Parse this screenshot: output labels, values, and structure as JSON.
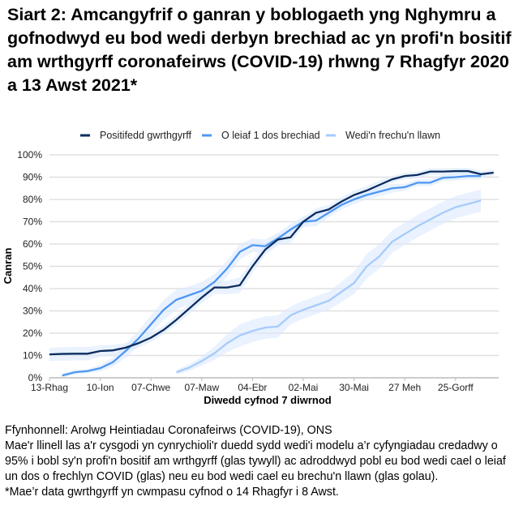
{
  "title": "Siart 2: Amcangyfrif o ganran y boblogaeth yng Nghymru a gofnodwyd eu bod wedi derbyn brechiad ac yn profi'n bositif am wrthgyrff coronafeirws (COVID-19) rhwng 7 Rhagfyr 2020 a 13 Awst 2021*",
  "chart_data": {
    "type": "line",
    "xlabel": "Diwedd cyfnod 7 diwrnod",
    "ylabel": "Canran",
    "ylim": [
      0,
      100
    ],
    "yticks": [
      "0%",
      "10%",
      "20%",
      "30%",
      "40%",
      "50%",
      "60%",
      "70%",
      "80%",
      "90%",
      "100%"
    ],
    "xtick_labels": [
      "13-Rhag",
      "10-Ion",
      "07-Chwe",
      "07-Maw",
      "04-Ebr",
      "02-Mai",
      "30-Mai",
      "27 Meh",
      "25-Gorff"
    ],
    "grid": true,
    "legend": "top",
    "x": [
      "2020-12-13",
      "2020-12-20",
      "2020-12-27",
      "2021-01-03",
      "2021-01-10",
      "2021-01-17",
      "2021-01-24",
      "2021-01-31",
      "2021-02-07",
      "2021-02-14",
      "2021-02-21",
      "2021-02-28",
      "2021-03-07",
      "2021-03-14",
      "2021-03-21",
      "2021-03-28",
      "2021-04-04",
      "2021-04-11",
      "2021-04-18",
      "2021-04-25",
      "2021-05-02",
      "2021-05-09",
      "2021-05-16",
      "2021-05-23",
      "2021-05-30",
      "2021-06-06",
      "2021-06-13",
      "2021-06-20",
      "2021-06-27",
      "2021-07-04",
      "2021-07-11",
      "2021-07-18",
      "2021-07-25",
      "2021-08-01",
      "2021-08-08",
      "2021-08-15"
    ],
    "series": [
      {
        "name": "Positifedd gwrthgyrff",
        "color": "#0b2c5f",
        "values": [
          10.5,
          10.7,
          10.8,
          10.8,
          12,
          12.3,
          13.5,
          15.5,
          18,
          21.5,
          26,
          31,
          36,
          40.5,
          40.5,
          41.5,
          50,
          57.5,
          62,
          63,
          70,
          74,
          75.5,
          79,
          82,
          84,
          86.5,
          89,
          90.5,
          91,
          92.5,
          92.5,
          92.7,
          92.7,
          91.3,
          92
        ],
        "ci": [
          3,
          3,
          3,
          3,
          2.5,
          2.5,
          2,
          2,
          2,
          2,
          2,
          2.5,
          2.5,
          3,
          3,
          3.5,
          3,
          2.5,
          2.5,
          2.5,
          2,
          2,
          2,
          2,
          2,
          2,
          2,
          1.5,
          1.5,
          1.5,
          1.5,
          1.5,
          1.5,
          1.5,
          1.5,
          1.5
        ]
      },
      {
        "name": "O leiaf 1 dos brechiad",
        "color": "#4f97f2",
        "values": [
          null,
          1,
          2.5,
          3,
          4.3,
          7,
          12,
          17.5,
          24,
          30.5,
          35,
          37,
          39,
          43,
          49,
          56.5,
          59.5,
          59,
          62.5,
          66.5,
          70,
          70.5,
          74,
          77.5,
          80,
          82,
          83.5,
          85,
          85.5,
          87.5,
          87.5,
          89.7,
          90,
          90.5,
          90.5,
          null
        ],
        "ci": [
          0,
          1,
          1,
          1,
          1.5,
          2,
          3,
          3.5,
          4,
          4.5,
          4.5,
          4,
          4,
          3.5,
          3.5,
          3.5,
          3,
          3,
          2.5,
          2.5,
          2.5,
          2.5,
          2,
          2,
          2,
          2,
          2,
          2,
          1.5,
          1.5,
          1.5,
          1.5,
          1.5,
          1.5,
          1.5,
          0
        ]
      },
      {
        "name": "Wedi'n frechu'n llawn",
        "color": "#a7cbfb",
        "values": [
          null,
          null,
          null,
          null,
          null,
          null,
          null,
          null,
          null,
          null,
          2.5,
          4.5,
          7.5,
          11,
          15.5,
          19,
          21,
          22.5,
          23,
          28,
          30.5,
          32.5,
          34.5,
          38.5,
          42.5,
          50,
          54.5,
          61,
          64.5,
          68,
          71,
          74,
          76.5,
          78,
          79.5,
          null
        ],
        "ci": [
          0,
          0,
          0,
          0,
          0,
          0,
          0,
          0,
          0,
          0,
          1,
          1.5,
          2,
          3,
          4,
          5,
          5,
          5,
          5,
          4,
          4,
          4,
          4,
          4.5,
          5,
          5.5,
          5.5,
          5,
          5,
          5,
          5,
          5,
          5,
          5,
          5,
          0
        ]
      }
    ]
  },
  "footer": {
    "source": "Ffynhonnell: Arolwg Heintiadau Coronafeirws (COVID-19), ONS",
    "note1": "Mae'r llinell las a'r cysgodi yn cynrychioli'r duedd sydd wedi'i modelu a’r cyfyngiadau credadwy o 95% i bobl sy'n profi'n bositif am wrthgyrff (glas tywyll) ac adroddwyd pobl eu bod wedi cael o leiaf un dos o frechlyn COVID (glas) neu eu bod wedi cael eu brechu'n llawn (glas golau).",
    "note2": "*Mae’r data gwrthgyrff yn cwmpasu cyfnod o 14 Rhagfyr i 8 Awst."
  }
}
